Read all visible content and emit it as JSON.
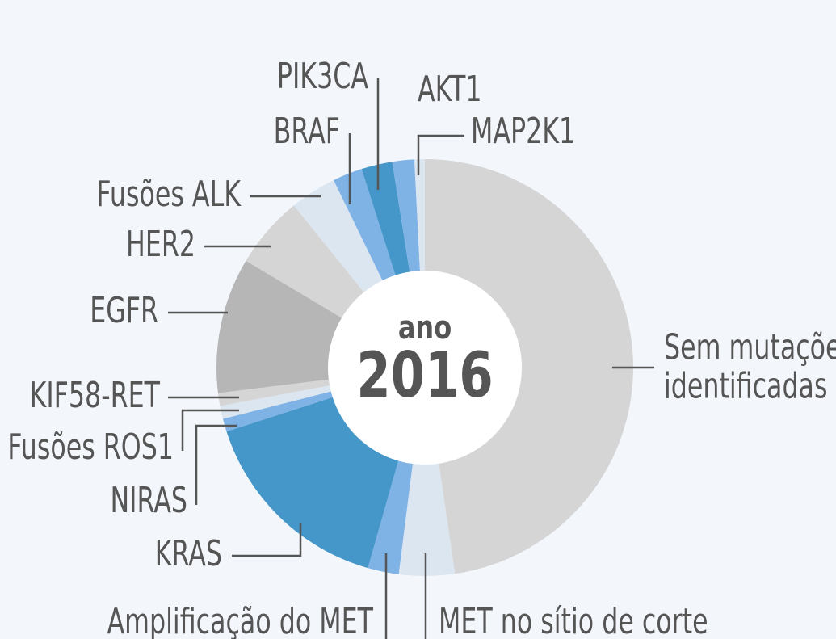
{
  "chart_data": {
    "type": "donut",
    "center_label": "ano",
    "center_value": "2016",
    "categories": [
      "Sem mutações identificadas",
      "MET no sítio de corte",
      "Amplificação do MET",
      "KRAS",
      "NIRAS",
      "Fusões ROS1",
      "KIF58-RET",
      "EGFR",
      "HER2",
      "Fusões ALK",
      "BRAF",
      "PIK3CA",
      "AKT1",
      "MAP2K1"
    ],
    "values": [
      47.6,
      4.3,
      2.4,
      15.6,
      1.0,
      1.0,
      1.0,
      10.5,
      5.6,
      3.6,
      2.3,
      2.4,
      1.7,
      0.8
    ],
    "colors": [
      "#d5d5d5",
      "#dce6f0",
      "#7fb3e6",
      "#4597c9",
      "#7fb3e6",
      "#dce6f0",
      "#d5d5d5",
      "#b6b6b6",
      "#d5d5d5",
      "#dce6f0",
      "#7fb3e6",
      "#4597c9",
      "#7fb3e6",
      "#dce6f0"
    ]
  }
}
